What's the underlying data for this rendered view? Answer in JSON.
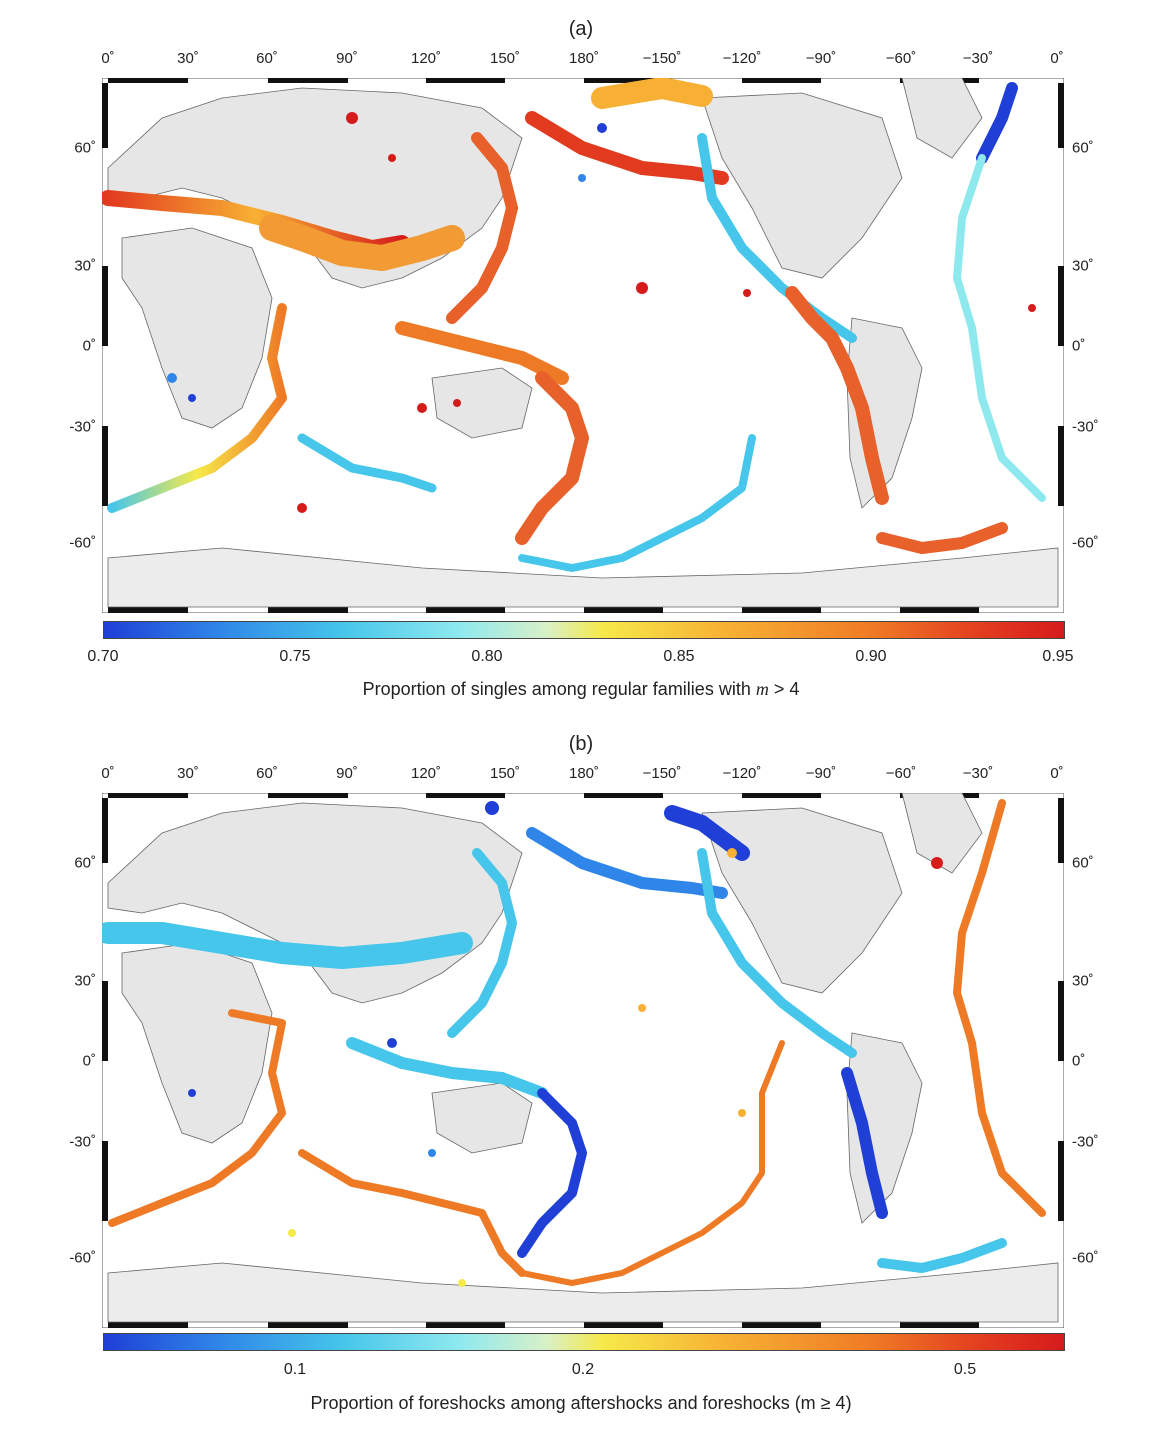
{
  "panel_a": {
    "title": "(a)",
    "lon_ticks": [
      "0˚",
      "30˚",
      "60˚",
      "90˚",
      "120˚",
      "150˚",
      "180˚",
      "−150˚",
      "−120˚",
      "−90˚",
      "−60˚",
      "−30˚",
      "0˚"
    ],
    "lat_ticks_left": [
      "60˚",
      "30˚",
      "0˚",
      "-30˚",
      "-60˚"
    ],
    "lat_ticks_right": [
      "60˚",
      "30˚",
      "0˚",
      "-30˚",
      "-60˚"
    ],
    "colorbar": {
      "ticks": [
        "0.70",
        "0.75",
        "0.80",
        "0.85",
        "0.90",
        "0.95"
      ],
      "min": 0.7,
      "max": 0.95,
      "label_prefix": "Proportion of singles among regular families with ",
      "label_var": "m",
      "label_suffix": " > 4"
    }
  },
  "panel_b": {
    "title": "(b)",
    "lon_ticks": [
      "0˚",
      "30˚",
      "60˚",
      "90˚",
      "120˚",
      "150˚",
      "180˚",
      "−150˚",
      "−120˚",
      "−90˚",
      "−60˚",
      "−30˚",
      "0˚"
    ],
    "lat_ticks_left": [
      "60˚",
      "30˚",
      "0˚",
      "-30˚",
      "-60˚"
    ],
    "lat_ticks_right": [
      "60˚",
      "30˚",
      "0˚",
      "-30˚",
      "-60˚"
    ],
    "colorbar": {
      "ticks": [
        "0.1",
        "0.2",
        "0.5"
      ],
      "label": "Proportion of foreshocks among aftershocks and foreshocks  (m ≥ 4)"
    }
  },
  "colors": {
    "low": "#1f3fd6",
    "mid_low": "#46c6ea",
    "mid": "#f6e94a",
    "mid_high": "#ef7a25",
    "high": "#d61b1b",
    "land": "#e6e6e6",
    "ocean": "#ffffff"
  }
}
